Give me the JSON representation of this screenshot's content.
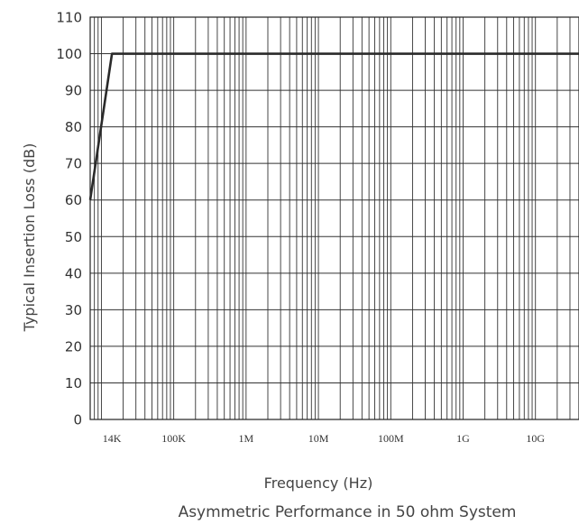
{
  "chart_data": {
    "type": "line",
    "xscale": "log",
    "xlabel": "Frequency (Hz)",
    "ylabel": "Typical Insertion Loss (dB)",
    "caption": "Asymmetric Performance in 50 ohm System",
    "xlim": [
      7000,
      40000000000
    ],
    "ylim": [
      0,
      110
    ],
    "grid": true,
    "y_ticks": [
      0,
      10,
      20,
      30,
      40,
      50,
      60,
      70,
      80,
      90,
      100,
      110
    ],
    "x_ticks": [
      {
        "value": 14000,
        "label": "14K"
      },
      {
        "value": 100000,
        "label": "100K"
      },
      {
        "value": 1000000,
        "label": "1M"
      },
      {
        "value": 10000000,
        "label": "10M"
      },
      {
        "value": 100000000,
        "label": "100M"
      },
      {
        "value": 1000000000,
        "label": "1G"
      },
      {
        "value": 10000000000,
        "label": "10G"
      }
    ],
    "series": [
      {
        "x": [
          7000,
          14000,
          40000000000
        ],
        "y": [
          60,
          100,
          100
        ],
        "color": "#2a2a2a"
      }
    ]
  }
}
